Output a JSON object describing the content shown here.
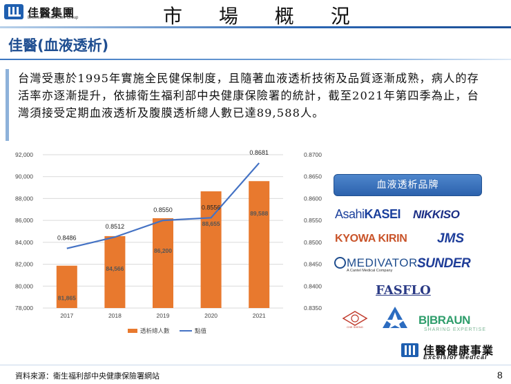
{
  "header": {
    "company_name": "佳醫集團",
    "company_sub": "Excelsior Healthcare Group",
    "title": "市 場 概 況"
  },
  "section": {
    "title": "佳醫(血液透析)"
  },
  "paragraph": {
    "text": "台灣受惠於1995年實施全民健保制度，且隨著血液透析技術及品質逐漸成熟，病人的存活率亦逐漸提升，依據衛生福利部中央健康保險署的統計，截至2021年第四季為止，台灣須接受定期血液透析及腹膜透析總人數已達89,588人。"
  },
  "chart_data": {
    "type": "bar",
    "categories": [
      "2017",
      "2018",
      "2019",
      "2020",
      "2021"
    ],
    "series": [
      {
        "name": "透析總人數",
        "chart_type": "bar",
        "axis": "left",
        "values": [
          81865,
          84566,
          86200,
          88655,
          89588
        ],
        "labels": [
          "81,865",
          "84,566",
          "86,200",
          "88,655",
          "89,588"
        ],
        "color": "#e8792e"
      },
      {
        "name": "點值",
        "chart_type": "line",
        "axis": "right",
        "values": [
          0.8486,
          0.8512,
          0.855,
          0.8556,
          0.8681
        ],
        "labels": [
          "0.8486",
          "0.8512",
          "0.8550",
          "0.8556",
          "0.8681"
        ],
        "color": "#4472c4"
      }
    ],
    "y_left": {
      "min": 78000,
      "max": 92000,
      "ticks": [
        "78,000",
        "80,000",
        "82,000",
        "84,000",
        "86,000",
        "88,000",
        "90,000",
        "92,000"
      ]
    },
    "y_right": {
      "min": 0.835,
      "max": 0.87,
      "ticks": [
        "0.8350",
        "0.8400",
        "0.8450",
        "0.8500",
        "0.8550",
        "0.8600",
        "0.8650",
        "0.8700"
      ]
    },
    "legend_position": "bottom",
    "grid": true
  },
  "brands": {
    "title": "血液透析品牌",
    "asahi_light": "Asahi",
    "asahi_bold": "KASEI",
    "nikkiso": "NIKKISO",
    "kyowa": "KYOWA KIRIN",
    "jms": "JMS",
    "medivators": "MEDIVATORS",
    "medivators_sub": "A Cantel Medical Company",
    "sunder": "SUNDER",
    "fasflo": "FASFLO",
    "cm_text": "CHE SHENG",
    "bbraun": "B|BRAUN",
    "bbraun_sub": "SHARING EXPERTISE"
  },
  "footer": {
    "logo_name": "佳醫健康事業",
    "logo_sub": "Excelsior Medical",
    "source": "資料來源：衛生福利部中央健康保險署網站",
    "page": "8"
  },
  "colors": {
    "brand_blue": "#1f5fb0",
    "title_blue": "#1f4e91",
    "bar_orange": "#e8792e",
    "line_blue": "#4472c4"
  }
}
